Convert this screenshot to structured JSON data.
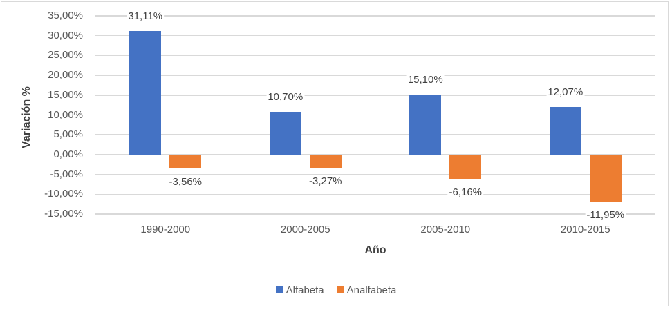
{
  "chart": {
    "background": "#FFFFFF"
  },
  "chart_data": {
    "type": "bar",
    "title": "",
    "xlabel": "Año",
    "ylabel": "Variación %",
    "categories": [
      "1990-2000",
      "2000-2005",
      "2005-2010",
      "2010-2015"
    ],
    "series": [
      {
        "name": "Alfabeta",
        "color": "#4472C4",
        "values": [
          31.11,
          10.7,
          15.1,
          12.07
        ],
        "data_labels": [
          "31,11%",
          "10,70%",
          "15,10%",
          "12,07%"
        ]
      },
      {
        "name": "Analfabeta",
        "color": "#ED7D31",
        "values": [
          -3.56,
          -3.27,
          -6.16,
          -11.95
        ],
        "data_labels": [
          "-3,56%",
          "-3,27%",
          "-6,16%",
          "-11,95%"
        ]
      }
    ],
    "ylim": [
      -15,
      35
    ],
    "ytick_step": 5,
    "ytick_labels": [
      "35,00%",
      "30,00%",
      "25,00%",
      "20,00%",
      "15,00%",
      "10,00%",
      "5,00%",
      "0,00%",
      "-5,00%",
      "-10,00%",
      "-15,00%"
    ],
    "grid": true,
    "legend_position": "bottom",
    "colors": {
      "gridline": "#D9D9D9",
      "frame_border": "#D9D9D9",
      "tick_text": "#595959",
      "category_text": "#595959",
      "legend_text": "#595959",
      "data_label_text": "#404040",
      "axis_title_text": "#404040"
    }
  }
}
